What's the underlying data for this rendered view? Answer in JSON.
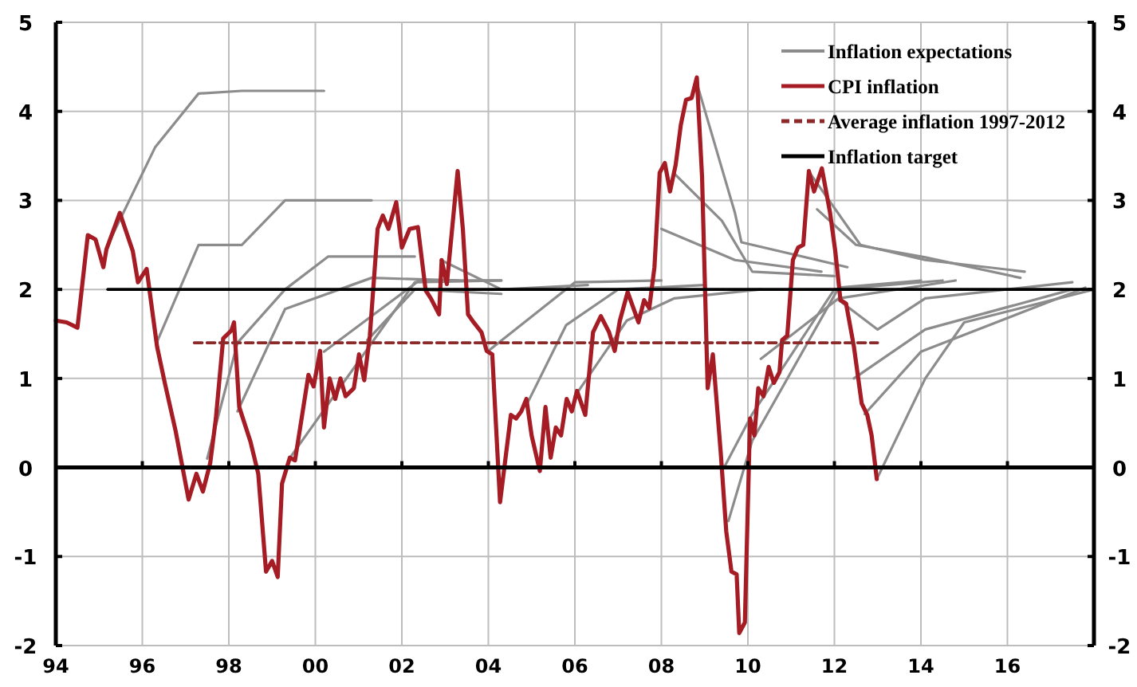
{
  "chart_data": {
    "type": "line",
    "xlim": [
      1994,
      2018
    ],
    "xticks": [
      {
        "value": 1994,
        "label": "94"
      },
      {
        "value": 1996,
        "label": "96"
      },
      {
        "value": 1998,
        "label": "98"
      },
      {
        "value": 2000,
        "label": "00"
      },
      {
        "value": 2002,
        "label": "02"
      },
      {
        "value": 2004,
        "label": "04"
      },
      {
        "value": 2006,
        "label": "06"
      },
      {
        "value": 2008,
        "label": "08"
      },
      {
        "value": 2010,
        "label": "10"
      },
      {
        "value": 2012,
        "label": "12"
      },
      {
        "value": 2014,
        "label": "14"
      },
      {
        "value": 2016,
        "label": "16"
      }
    ],
    "ylim": [
      -2,
      5
    ],
    "yticks": [
      -2,
      -1,
      0,
      1,
      2,
      3,
      4,
      5
    ],
    "y2lim": [
      -2,
      5
    ],
    "y2ticks": [
      -2,
      -1,
      0,
      1,
      2,
      3,
      4,
      5
    ],
    "grid": true,
    "legend": "top right",
    "marker": "none",
    "series": [
      {
        "name": "Inflation expectations",
        "color": "#8c8c8c",
        "x": [
          1995.3,
          1996.3,
          1997.3,
          1998.3,
          2000.2
        ],
        "values": [
          2.6,
          3.6,
          4.2,
          4.23,
          4.23
        ]
      },
      {
        "color": "#8c8c8c",
        "x": [
          1996.33,
          1997.3,
          1998.3,
          1999.3,
          2001.3
        ],
        "values": [
          1.4,
          2.5,
          2.5,
          3.0,
          3.0
        ]
      },
      {
        "color": "#8c8c8c",
        "x": [
          1997.5,
          1998.2,
          1999.3,
          2000.3,
          2002.3
        ],
        "values": [
          0.1,
          1.4,
          2.0,
          2.37,
          2.37
        ]
      },
      {
        "color": "#8c8c8c",
        "x": [
          1998.2,
          1999.3,
          2001.3,
          2003.3
        ],
        "values": [
          0.63,
          1.78,
          2.13,
          2.1
        ]
      },
      {
        "color": "#8c8c8c",
        "x": [
          1999.4,
          2002.3,
          2004.3
        ],
        "values": [
          0.1,
          2.08,
          2.1
        ]
      },
      {
        "color": "#8c8c8c",
        "x": [
          2000.2,
          2002.4,
          2004.3
        ],
        "values": [
          1.3,
          2.1,
          2.1
        ]
      },
      {
        "color": "#8c8c8c",
        "x": [
          2001.2,
          2002.3,
          2004.3
        ],
        "values": [
          1.43,
          2.0,
          1.95
        ]
      },
      {
        "color": "#8c8c8c",
        "x": [
          2002.9,
          2004.3,
          2006.3
        ],
        "values": [
          2.33,
          2.0,
          2.05
        ]
      },
      {
        "color": "#8c8c8c",
        "x": [
          2004.0,
          2006.0,
          2008.0
        ],
        "values": [
          1.31,
          2.08,
          2.1
        ]
      },
      {
        "color": "#8c8c8c",
        "x": [
          2004.9,
          2005.8,
          2007.0,
          2009.0
        ],
        "values": [
          0.72,
          1.6,
          2.0,
          2.05
        ]
      },
      {
        "color": "#8c8c8c",
        "x": [
          2006.0,
          2007.2,
          2008.3,
          2010.3
        ],
        "values": [
          0.8,
          1.65,
          1.9,
          2.0
        ]
      },
      {
        "color": "#8c8c8c",
        "x": [
          2008.0,
          2009.7,
          2011.7
        ],
        "values": [
          2.68,
          2.33,
          2.2
        ]
      },
      {
        "color": "#8c8c8c",
        "x": [
          2008.3,
          2009.4,
          2010.1,
          2012.0
        ],
        "values": [
          3.3,
          2.77,
          2.2,
          2.15
        ]
      },
      {
        "color": "#8c8c8c",
        "x": [
          2008.8,
          2009.7,
          2009.85,
          2012.3
        ],
        "values": [
          4.35,
          2.86,
          2.53,
          2.25
        ]
      },
      {
        "color": "#8c8c8c",
        "x": [
          2009.55,
          2010.1,
          2012.1,
          2014.0
        ],
        "values": [
          -0.6,
          0.3,
          2.02,
          2.1
        ]
      },
      {
        "color": "#8c8c8c",
        "x": [
          2009.45,
          2010.1,
          2012.0,
          2014.5
        ],
        "values": [
          0.0,
          0.6,
          2.0,
          2.1
        ]
      },
      {
        "color": "#8c8c8c",
        "x": [
          2010.3,
          2012.1,
          2014.8
        ],
        "values": [
          1.22,
          1.9,
          2.1
        ]
      },
      {
        "color": "#8c8c8c",
        "x": [
          2011.4,
          2012.6,
          2014.1,
          2016.4
        ],
        "values": [
          3.33,
          2.5,
          2.33,
          2.2
        ]
      },
      {
        "color": "#8c8c8c",
        "x": [
          2011.6,
          2012.5,
          2014.1,
          2016.3
        ],
        "values": [
          2.9,
          2.5,
          2.36,
          2.13
        ]
      },
      {
        "color": "#8c8c8c",
        "x": [
          2012.1,
          2013.0,
          2014.1,
          2017.5
        ],
        "values": [
          1.88,
          1.55,
          1.9,
          2.08
        ]
      },
      {
        "color": "#8c8c8c",
        "x": [
          2012.45,
          2014.1,
          2017.5
        ],
        "values": [
          1.0,
          1.55,
          2.0
        ]
      },
      {
        "color": "#8c8c8c",
        "x": [
          2012.7,
          2014.0,
          2017.8
        ],
        "values": [
          0.6,
          1.3,
          2.02
        ]
      },
      {
        "color": "#8c8c8c",
        "x": [
          2012.98,
          2014.1,
          2015.0,
          2018.0
        ],
        "values": [
          -0.13,
          1.0,
          1.63,
          2.0
        ]
      },
      {
        "name": "CPI inflation",
        "color": "#a51c24",
        "x": [
          1994.0,
          1994.25,
          1994.5,
          1994.74,
          1994.92,
          1995.1,
          1995.17,
          1995.48,
          1995.78,
          1995.9,
          1996.1,
          1996.34,
          1996.52,
          1996.77,
          1997.07,
          1997.25,
          1997.4,
          1997.57,
          1997.7,
          1997.87,
          1998.06,
          1998.12,
          1998.24,
          1998.5,
          1998.68,
          1998.86,
          1999.0,
          1999.13,
          1999.23,
          1999.41,
          1999.53,
          1999.65,
          1999.84,
          1999.96,
          2000.11,
          2000.2,
          2000.33,
          2000.46,
          2000.58,
          2000.7,
          2000.89,
          2001.01,
          2001.13,
          2001.26,
          2001.44,
          2001.56,
          2001.69,
          2001.87,
          2002.0,
          2002.18,
          2002.37,
          2002.55,
          2002.67,
          2002.86,
          2002.92,
          2003.04,
          2003.29,
          2003.41,
          2003.53,
          2003.66,
          2003.84,
          2003.96,
          2004.09,
          2004.27,
          2004.52,
          2004.64,
          2004.76,
          2004.88,
          2005.0,
          2005.19,
          2005.32,
          2005.44,
          2005.56,
          2005.68,
          2005.81,
          2005.93,
          2006.05,
          2006.24,
          2006.42,
          2006.6,
          2006.79,
          2006.92,
          2007.04,
          2007.22,
          2007.47,
          2007.6,
          2007.72,
          2007.84,
          2007.96,
          2008.08,
          2008.2,
          2008.33,
          2008.45,
          2008.57,
          2008.7,
          2008.82,
          2008.94,
          2009.07,
          2009.19,
          2009.37,
          2009.5,
          2009.62,
          2009.74,
          2009.8,
          2009.93,
          2010.05,
          2010.15,
          2010.24,
          2010.36,
          2010.48,
          2010.6,
          2010.73,
          2010.79,
          2010.91,
          2011.04,
          2011.16,
          2011.28,
          2011.41,
          2011.53,
          2011.71,
          2011.9,
          2012.02,
          2012.14,
          2012.27,
          2012.45,
          2012.63,
          2012.76,
          2012.86,
          2012.98
        ],
        "values": [
          1.65,
          1.63,
          1.57,
          2.61,
          2.56,
          2.25,
          2.45,
          2.86,
          2.43,
          2.08,
          2.23,
          1.36,
          0.95,
          0.41,
          -0.36,
          -0.07,
          -0.27,
          0.05,
          0.55,
          1.45,
          1.54,
          1.63,
          0.68,
          0.29,
          -0.07,
          -1.17,
          -1.05,
          -1.23,
          -0.18,
          0.11,
          0.08,
          0.45,
          1.04,
          0.91,
          1.31,
          0.45,
          1.0,
          0.77,
          1.0,
          0.8,
          0.89,
          1.27,
          0.98,
          1.48,
          2.68,
          2.83,
          2.68,
          2.98,
          2.47,
          2.68,
          2.7,
          1.99,
          1.9,
          1.72,
          2.33,
          2.06,
          3.33,
          2.68,
          1.72,
          1.63,
          1.52,
          1.31,
          1.27,
          -0.39,
          0.59,
          0.55,
          0.63,
          0.77,
          0.36,
          -0.04,
          0.68,
          0.11,
          0.45,
          0.36,
          0.77,
          0.63,
          0.86,
          0.59,
          1.52,
          1.7,
          1.52,
          1.31,
          1.65,
          1.97,
          1.63,
          1.88,
          1.79,
          2.25,
          3.31,
          3.42,
          3.1,
          3.4,
          3.85,
          4.13,
          4.15,
          4.38,
          3.27,
          0.89,
          1.27,
          0.18,
          -0.72,
          -1.17,
          -1.2,
          -1.86,
          -1.74,
          0.55,
          0.36,
          0.89,
          0.8,
          1.13,
          0.95,
          1.07,
          1.43,
          1.48,
          2.33,
          2.47,
          2.5,
          3.33,
          3.1,
          3.36,
          2.86,
          2.43,
          1.88,
          1.84,
          1.36,
          0.72,
          0.59,
          0.36,
          -0.13
        ]
      },
      {
        "name": "Average inflation 1997-2012",
        "color": "#8b2a2a",
        "line_style": "dashed",
        "x": [
          1997.2,
          2013.0
        ],
        "values": [
          1.4,
          1.4
        ]
      },
      {
        "name": "Inflation target",
        "color": "#000000",
        "x": [
          1995.2,
          2018.0
        ],
        "values": [
          2,
          2
        ]
      }
    ]
  }
}
